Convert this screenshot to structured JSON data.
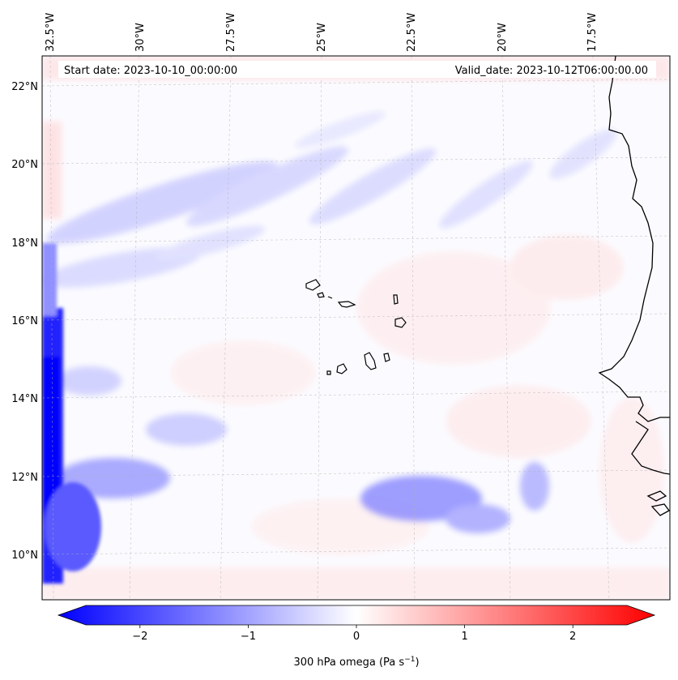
{
  "map": {
    "start_label": "Start date: 2023-10-10_00:00:00",
    "valid_label": "Valid_date: 2023-10-12T06:00:00.00",
    "lon_labels": [
      "32.5°W",
      "30°W",
      "27.5°W",
      "25°W",
      "22.5°W",
      "20°W",
      "17.5°W"
    ],
    "lat_labels": [
      "22°N",
      "20°N",
      "18°N",
      "16°N",
      "14°N",
      "12°N",
      "10°N"
    ],
    "variable": "300 hPa omega",
    "units": "Pa s",
    "units_exponent": "−1"
  },
  "colorbar": {
    "ticks": [
      "−2",
      "−1",
      "0",
      "1",
      "2"
    ],
    "tick_values": [
      -2,
      -1,
      0,
      1,
      2
    ],
    "vmin": -2.5,
    "vmax": 2.5,
    "colormap": "bwr",
    "colors": {
      "negative": "#0000ff",
      "zero": "#ffffff",
      "positive": "#ff0000"
    }
  }
}
